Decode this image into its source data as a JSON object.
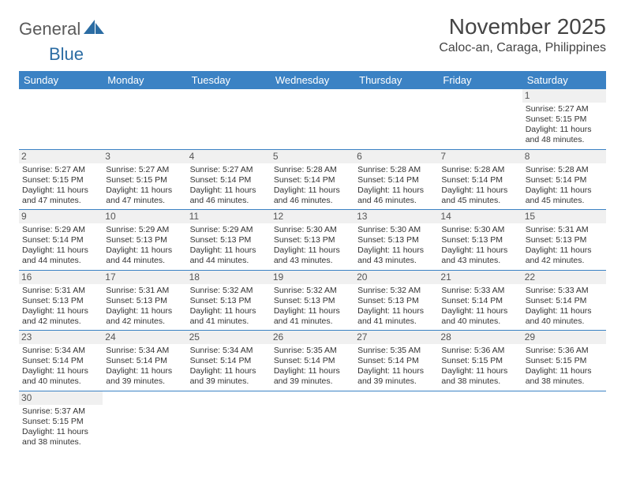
{
  "brand": {
    "part1": "General",
    "part2": "Blue"
  },
  "title": "November 2025",
  "location": "Caloc-an, Caraga, Philippines",
  "colors": {
    "header_bg": "#3b82c4",
    "header_fg": "#ffffff",
    "text": "#333333",
    "daynum_bg": "#f0f0f0",
    "border": "#3b82c4",
    "logo_gray": "#5a5a5a",
    "logo_blue": "#2b6ca3"
  },
  "weekdays": [
    "Sunday",
    "Monday",
    "Tuesday",
    "Wednesday",
    "Thursday",
    "Friday",
    "Saturday"
  ],
  "weeks": [
    [
      {
        "n": "",
        "rise": "",
        "set": "",
        "day": ""
      },
      {
        "n": "",
        "rise": "",
        "set": "",
        "day": ""
      },
      {
        "n": "",
        "rise": "",
        "set": "",
        "day": ""
      },
      {
        "n": "",
        "rise": "",
        "set": "",
        "day": ""
      },
      {
        "n": "",
        "rise": "",
        "set": "",
        "day": ""
      },
      {
        "n": "",
        "rise": "",
        "set": "",
        "day": ""
      },
      {
        "n": "1",
        "rise": "Sunrise: 5:27 AM",
        "set": "Sunset: 5:15 PM",
        "day": "Daylight: 11 hours and 48 minutes."
      }
    ],
    [
      {
        "n": "2",
        "rise": "Sunrise: 5:27 AM",
        "set": "Sunset: 5:15 PM",
        "day": "Daylight: 11 hours and 47 minutes."
      },
      {
        "n": "3",
        "rise": "Sunrise: 5:27 AM",
        "set": "Sunset: 5:15 PM",
        "day": "Daylight: 11 hours and 47 minutes."
      },
      {
        "n": "4",
        "rise": "Sunrise: 5:27 AM",
        "set": "Sunset: 5:14 PM",
        "day": "Daylight: 11 hours and 46 minutes."
      },
      {
        "n": "5",
        "rise": "Sunrise: 5:28 AM",
        "set": "Sunset: 5:14 PM",
        "day": "Daylight: 11 hours and 46 minutes."
      },
      {
        "n": "6",
        "rise": "Sunrise: 5:28 AM",
        "set": "Sunset: 5:14 PM",
        "day": "Daylight: 11 hours and 46 minutes."
      },
      {
        "n": "7",
        "rise": "Sunrise: 5:28 AM",
        "set": "Sunset: 5:14 PM",
        "day": "Daylight: 11 hours and 45 minutes."
      },
      {
        "n": "8",
        "rise": "Sunrise: 5:28 AM",
        "set": "Sunset: 5:14 PM",
        "day": "Daylight: 11 hours and 45 minutes."
      }
    ],
    [
      {
        "n": "9",
        "rise": "Sunrise: 5:29 AM",
        "set": "Sunset: 5:14 PM",
        "day": "Daylight: 11 hours and 44 minutes."
      },
      {
        "n": "10",
        "rise": "Sunrise: 5:29 AM",
        "set": "Sunset: 5:13 PM",
        "day": "Daylight: 11 hours and 44 minutes."
      },
      {
        "n": "11",
        "rise": "Sunrise: 5:29 AM",
        "set": "Sunset: 5:13 PM",
        "day": "Daylight: 11 hours and 44 minutes."
      },
      {
        "n": "12",
        "rise": "Sunrise: 5:30 AM",
        "set": "Sunset: 5:13 PM",
        "day": "Daylight: 11 hours and 43 minutes."
      },
      {
        "n": "13",
        "rise": "Sunrise: 5:30 AM",
        "set": "Sunset: 5:13 PM",
        "day": "Daylight: 11 hours and 43 minutes."
      },
      {
        "n": "14",
        "rise": "Sunrise: 5:30 AM",
        "set": "Sunset: 5:13 PM",
        "day": "Daylight: 11 hours and 43 minutes."
      },
      {
        "n": "15",
        "rise": "Sunrise: 5:31 AM",
        "set": "Sunset: 5:13 PM",
        "day": "Daylight: 11 hours and 42 minutes."
      }
    ],
    [
      {
        "n": "16",
        "rise": "Sunrise: 5:31 AM",
        "set": "Sunset: 5:13 PM",
        "day": "Daylight: 11 hours and 42 minutes."
      },
      {
        "n": "17",
        "rise": "Sunrise: 5:31 AM",
        "set": "Sunset: 5:13 PM",
        "day": "Daylight: 11 hours and 42 minutes."
      },
      {
        "n": "18",
        "rise": "Sunrise: 5:32 AM",
        "set": "Sunset: 5:13 PM",
        "day": "Daylight: 11 hours and 41 minutes."
      },
      {
        "n": "19",
        "rise": "Sunrise: 5:32 AM",
        "set": "Sunset: 5:13 PM",
        "day": "Daylight: 11 hours and 41 minutes."
      },
      {
        "n": "20",
        "rise": "Sunrise: 5:32 AM",
        "set": "Sunset: 5:13 PM",
        "day": "Daylight: 11 hours and 41 minutes."
      },
      {
        "n": "21",
        "rise": "Sunrise: 5:33 AM",
        "set": "Sunset: 5:14 PM",
        "day": "Daylight: 11 hours and 40 minutes."
      },
      {
        "n": "22",
        "rise": "Sunrise: 5:33 AM",
        "set": "Sunset: 5:14 PM",
        "day": "Daylight: 11 hours and 40 minutes."
      }
    ],
    [
      {
        "n": "23",
        "rise": "Sunrise: 5:34 AM",
        "set": "Sunset: 5:14 PM",
        "day": "Daylight: 11 hours and 40 minutes."
      },
      {
        "n": "24",
        "rise": "Sunrise: 5:34 AM",
        "set": "Sunset: 5:14 PM",
        "day": "Daylight: 11 hours and 39 minutes."
      },
      {
        "n": "25",
        "rise": "Sunrise: 5:34 AM",
        "set": "Sunset: 5:14 PM",
        "day": "Daylight: 11 hours and 39 minutes."
      },
      {
        "n": "26",
        "rise": "Sunrise: 5:35 AM",
        "set": "Sunset: 5:14 PM",
        "day": "Daylight: 11 hours and 39 minutes."
      },
      {
        "n": "27",
        "rise": "Sunrise: 5:35 AM",
        "set": "Sunset: 5:14 PM",
        "day": "Daylight: 11 hours and 39 minutes."
      },
      {
        "n": "28",
        "rise": "Sunrise: 5:36 AM",
        "set": "Sunset: 5:15 PM",
        "day": "Daylight: 11 hours and 38 minutes."
      },
      {
        "n": "29",
        "rise": "Sunrise: 5:36 AM",
        "set": "Sunset: 5:15 PM",
        "day": "Daylight: 11 hours and 38 minutes."
      }
    ],
    [
      {
        "n": "30",
        "rise": "Sunrise: 5:37 AM",
        "set": "Sunset: 5:15 PM",
        "day": "Daylight: 11 hours and 38 minutes."
      },
      {
        "n": "",
        "rise": "",
        "set": "",
        "day": ""
      },
      {
        "n": "",
        "rise": "",
        "set": "",
        "day": ""
      },
      {
        "n": "",
        "rise": "",
        "set": "",
        "day": ""
      },
      {
        "n": "",
        "rise": "",
        "set": "",
        "day": ""
      },
      {
        "n": "",
        "rise": "",
        "set": "",
        "day": ""
      },
      {
        "n": "",
        "rise": "",
        "set": "",
        "day": ""
      }
    ]
  ]
}
